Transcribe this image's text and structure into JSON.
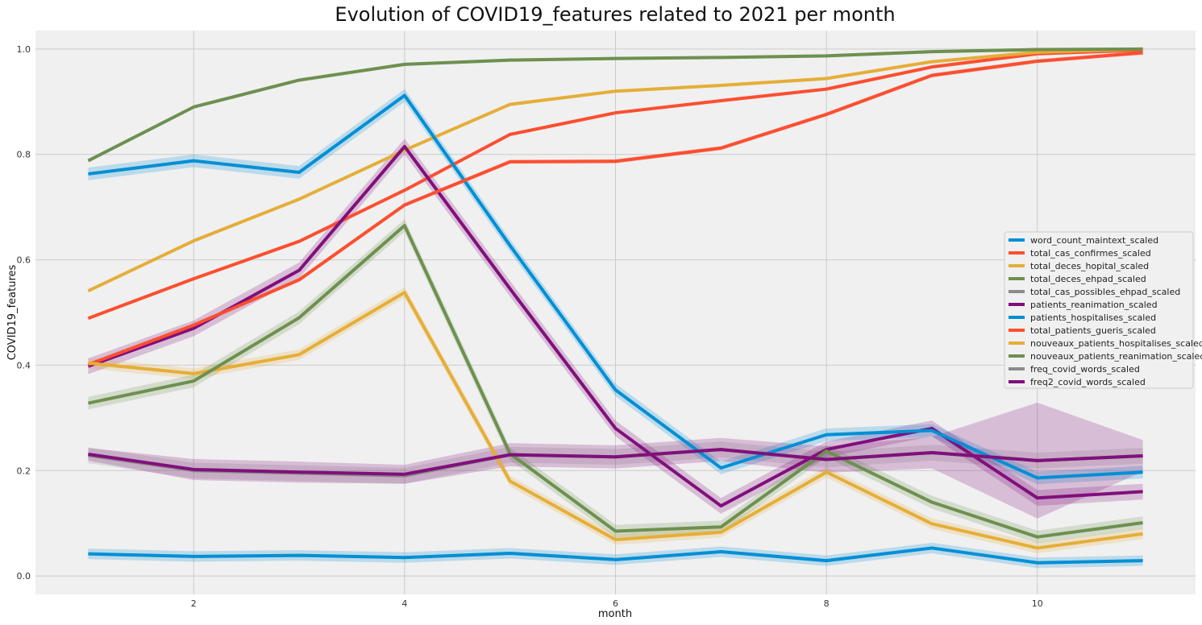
{
  "chart_data": {
    "type": "line",
    "title": "Evolution of COVID19_features related to 2021 per month",
    "xlabel": "month",
    "ylabel": "COVID19_features",
    "xlim": [
      0.5,
      11.5
    ],
    "ylim": [
      -0.035,
      1.035
    ],
    "xticks": [
      2,
      4,
      6,
      8,
      10
    ],
    "yticks": [
      0.0,
      0.2,
      0.4,
      0.6,
      0.8,
      1.0
    ],
    "grid": true,
    "legend_position": "center-right",
    "x": [
      1,
      2,
      3,
      4,
      5,
      6,
      7,
      8,
      9,
      10,
      11
    ],
    "series": [
      {
        "name": "word_count_maintext_scaled",
        "color": "#008fd5",
        "band": 0.01,
        "values": [
          0.042,
          0.037,
          0.039,
          0.035,
          0.043,
          0.031,
          0.046,
          0.029,
          0.053,
          0.025,
          0.029
        ]
      },
      {
        "name": "total_cas_confirmes_scaled",
        "color": "#fc4f30",
        "band": 0.003,
        "values": [
          0.489,
          0.564,
          0.635,
          0.732,
          0.838,
          0.879,
          0.902,
          0.924,
          0.966,
          0.991,
          0.998
        ]
      },
      {
        "name": "total_deces_hopital_scaled",
        "color": "#e5ae38",
        "band": 0.003,
        "values": [
          0.541,
          0.636,
          0.715,
          0.808,
          0.895,
          0.92,
          0.931,
          0.944,
          0.976,
          0.994,
          1.0
        ]
      },
      {
        "name": "total_deces_ehpad_scaled",
        "color": "#6d904f",
        "band": 0.003,
        "values": [
          0.788,
          0.89,
          0.941,
          0.971,
          0.979,
          0.982,
          0.984,
          0.987,
          0.995,
          0.999,
          1.0
        ]
      },
      {
        "name": "total_cas_possibles_ehpad_scaled",
        "color": "#8b8b8b",
        "band": 0.015,
        "values": [
          0.229,
          0.2,
          0.195,
          0.19,
          0.23,
          0.226,
          0.24,
          0.221,
          0.234,
          0.219,
          0.228
        ]
      },
      {
        "name": "patients_reanimation_scaled",
        "color": "#810f7c",
        "band": 0.015,
        "values": [
          0.398,
          0.47,
          0.58,
          0.815,
          0.545,
          0.28,
          0.133,
          0.24,
          0.28,
          0.148,
          0.16
        ]
      },
      {
        "name": "patients_hospitalises_scaled",
        "color": "#008fd5",
        "band": 0.012,
        "values": [
          0.763,
          0.788,
          0.766,
          0.912,
          0.627,
          0.353,
          0.205,
          0.268,
          0.276,
          0.186,
          0.197
        ]
      },
      {
        "name": "total_patients_gueris_scaled",
        "color": "#fc4f30",
        "band": 0.004,
        "values": [
          0.401,
          0.476,
          0.562,
          0.704,
          0.786,
          0.787,
          0.812,
          0.876,
          0.95,
          0.977,
          0.993
        ]
      },
      {
        "name": "nouveaux_patients_hospitalises_scaled",
        "color": "#e5ae38",
        "band": 0.01,
        "values": [
          0.404,
          0.384,
          0.42,
          0.538,
          0.18,
          0.069,
          0.083,
          0.197,
          0.099,
          0.053,
          0.08
        ]
      },
      {
        "name": "nouveaux_patients_reanimation_scaled",
        "color": "#6d904f",
        "band": 0.012,
        "values": [
          0.328,
          0.37,
          0.49,
          0.665,
          0.232,
          0.085,
          0.093,
          0.237,
          0.14,
          0.074,
          0.101
        ]
      },
      {
        "name": "freq_covid_words_scaled",
        "color": "#8b8b8b",
        "band": 0.0,
        "values": [
          0.231,
          0.202,
          0.197,
          0.193,
          0.23,
          0.226,
          0.24,
          0.221,
          0.234,
          0.219,
          0.228
        ]
      },
      {
        "name": "freq2_covid_words_scaled",
        "color": "#810f7c",
        "band": [
          0.012,
          0.02,
          0.02,
          0.018,
          0.022,
          0.022,
          0.022,
          0.025,
          0.03,
          0.11,
          0.03
        ],
        "values": [
          0.231,
          0.202,
          0.197,
          0.193,
          0.23,
          0.226,
          0.24,
          0.221,
          0.234,
          0.219,
          0.228
        ]
      }
    ]
  }
}
